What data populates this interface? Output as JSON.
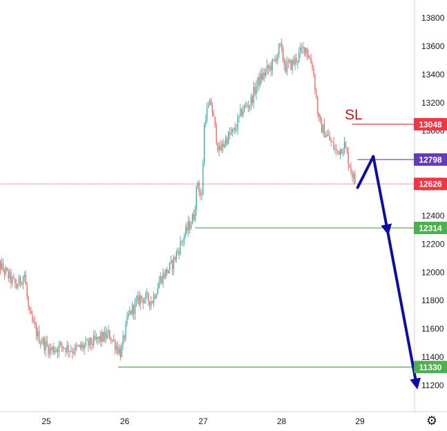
{
  "chart_data": {
    "type": "candlestick",
    "x_tick_labels": [
      "25",
      "26",
      "27",
      "28",
      "29"
    ],
    "x_range": [
      24.33,
      29.77
    ],
    "y_range": [
      11040,
      13950
    ],
    "y_tick_values": [
      11200,
      11400,
      11600,
      11800,
      12000,
      12200,
      12400,
      12600,
      12800,
      13000,
      13200,
      13400,
      13600,
      13800
    ],
    "y_tick_labels": [
      "11200",
      "11400",
      "11600",
      "11800",
      "12000",
      "12200",
      "12400",
      "12600",
      "12800",
      "13000",
      "13200",
      "13400",
      "13600",
      "13800"
    ],
    "price_anchors": [
      [
        24.33,
        12100
      ],
      [
        24.45,
        12020
      ],
      [
        24.62,
        11900
      ],
      [
        24.72,
        11990
      ],
      [
        24.78,
        11700
      ],
      [
        24.9,
        11540
      ],
      [
        25.05,
        11450
      ],
      [
        25.2,
        11480
      ],
      [
        25.35,
        11450
      ],
      [
        25.5,
        11480
      ],
      [
        25.65,
        11520
      ],
      [
        25.8,
        11560
      ],
      [
        25.95,
        11430
      ],
      [
        26.05,
        11700
      ],
      [
        26.2,
        11820
      ],
      [
        26.35,
        11800
      ],
      [
        26.45,
        11950
      ],
      [
        26.6,
        12050
      ],
      [
        26.75,
        12250
      ],
      [
        26.88,
        12400
      ],
      [
        26.93,
        12650
      ],
      [
        26.98,
        12500
      ],
      [
        27.02,
        13100
      ],
      [
        27.1,
        13200
      ],
      [
        27.2,
        12850
      ],
      [
        27.3,
        12950
      ],
      [
        27.4,
        13000
      ],
      [
        27.5,
        13150
      ],
      [
        27.6,
        13200
      ],
      [
        27.7,
        13350
      ],
      [
        27.8,
        13420
      ],
      [
        27.9,
        13480
      ],
      [
        27.98,
        13600
      ],
      [
        28.05,
        13450
      ],
      [
        28.15,
        13480
      ],
      [
        28.3,
        13600
      ],
      [
        28.4,
        13450
      ],
      [
        28.48,
        13050
      ],
      [
        28.6,
        12950
      ],
      [
        28.7,
        12850
      ],
      [
        28.8,
        12900
      ],
      [
        28.9,
        12700
      ],
      [
        28.95,
        12620
      ]
    ],
    "levels": [
      {
        "value": 13048,
        "label": "13048",
        "color": "#f23645",
        "line_color": "#b71c1c",
        "line_start_x": 28.9
      },
      {
        "value": 12798,
        "label": "12798",
        "color": "#673ab7",
        "line_color": "#6a1b9a",
        "line_start_x": 28.97
      },
      {
        "value": 12626,
        "label": "12626",
        "color": "#f23645",
        "line_color": "#f23645",
        "style": "dotted",
        "line_start_x": 24.33
      },
      {
        "value": 12314,
        "label": "12314",
        "color": "#4caf50",
        "line_color": "#388e3c",
        "line_start_x": 26.9
      },
      {
        "value": 11330,
        "label": "11330",
        "color": "#4caf50",
        "line_color": "#388e3c",
        "line_start_x": 25.92
      }
    ],
    "annotation": {
      "text": "SL",
      "x": 29.0,
      "y": 13120
    },
    "projection_path": [
      [
        28.97,
        12600
      ],
      [
        29.17,
        12820
      ],
      [
        29.35,
        12300
      ],
      [
        29.72,
        11210
      ]
    ],
    "colors": {
      "up": "#26a69a",
      "down": "#ef5350",
      "projection": "#0d0da3",
      "text": "#131722",
      "axis_line": "#d1d4dc"
    }
  },
  "settings_icon": "gear-icon"
}
